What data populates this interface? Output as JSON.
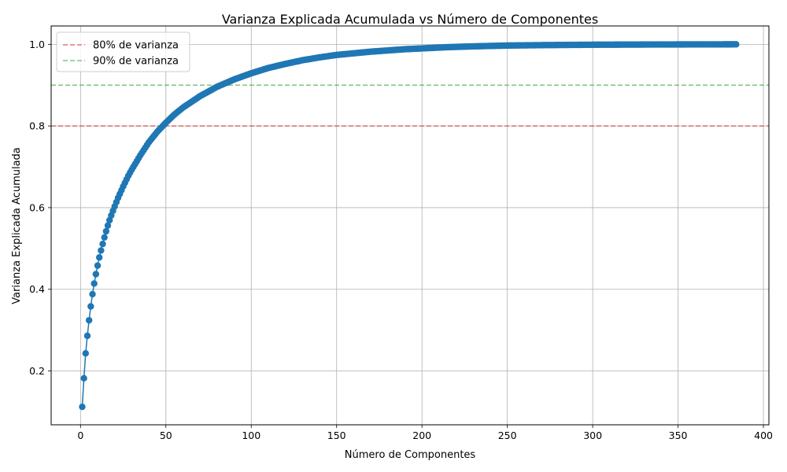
{
  "chart_data": {
    "type": "line",
    "title": "Varianza Explicada Acumulada vs Número de Componentes",
    "xlabel": "Número de Componentes",
    "ylabel": "Varianza Explicada Acumulada",
    "xlim": [
      -17.2,
      403.2
    ],
    "ylim": [
      0.068,
      1.045
    ],
    "xticks": [
      0,
      50,
      100,
      150,
      200,
      250,
      300,
      350,
      400
    ],
    "yticks": [
      0.2,
      0.4,
      0.6,
      0.8,
      1.0
    ],
    "xtick_labels": [
      "0",
      "50",
      "100",
      "150",
      "200",
      "250",
      "300",
      "350",
      "400"
    ],
    "ytick_labels": [
      "0.2",
      "0.4",
      "0.6",
      "0.8",
      "1.0"
    ],
    "grid": true,
    "legend_position": "top-left",
    "n_components": 384,
    "colors": {
      "series": "#1f77b4",
      "line80": "#d62728",
      "line90": "#2ca02c",
      "grid": "#b0b0b0"
    },
    "series": [
      {
        "style": "line-with-markers",
        "x_samples": [
          1,
          2,
          3,
          4,
          5,
          6,
          7,
          8,
          9,
          10,
          11,
          12,
          13,
          14,
          15,
          16,
          17,
          18,
          19,
          20,
          22,
          25,
          28,
          30,
          35,
          40,
          45,
          50,
          55,
          60,
          70,
          80,
          90,
          100,
          110,
          120,
          130,
          140,
          150,
          160,
          170,
          180,
          190,
          200,
          215,
          230,
          250,
          270,
          300,
          330,
          360,
          384
        ],
        "y_samples": [
          0.112,
          0.182,
          0.243,
          0.286,
          0.324,
          0.358,
          0.388,
          0.414,
          0.437,
          0.458,
          0.478,
          0.495,
          0.511,
          0.527,
          0.542,
          0.556,
          0.569,
          0.581,
          0.592,
          0.603,
          0.624,
          0.652,
          0.678,
          0.693,
          0.728,
          0.76,
          0.786,
          0.808,
          0.828,
          0.845,
          0.873,
          0.896,
          0.914,
          0.929,
          0.942,
          0.952,
          0.961,
          0.968,
          0.974,
          0.978,
          0.982,
          0.985,
          0.988,
          0.99,
          0.993,
          0.995,
          0.997,
          0.998,
          0.999,
          0.9995,
          0.9998,
          1.0
        ]
      }
    ],
    "reference_lines": [
      {
        "label": "80% de varianza",
        "y": 0.8,
        "color": "#d62728"
      },
      {
        "label": "90% de varianza",
        "y": 0.9,
        "color": "#2ca02c"
      }
    ]
  }
}
